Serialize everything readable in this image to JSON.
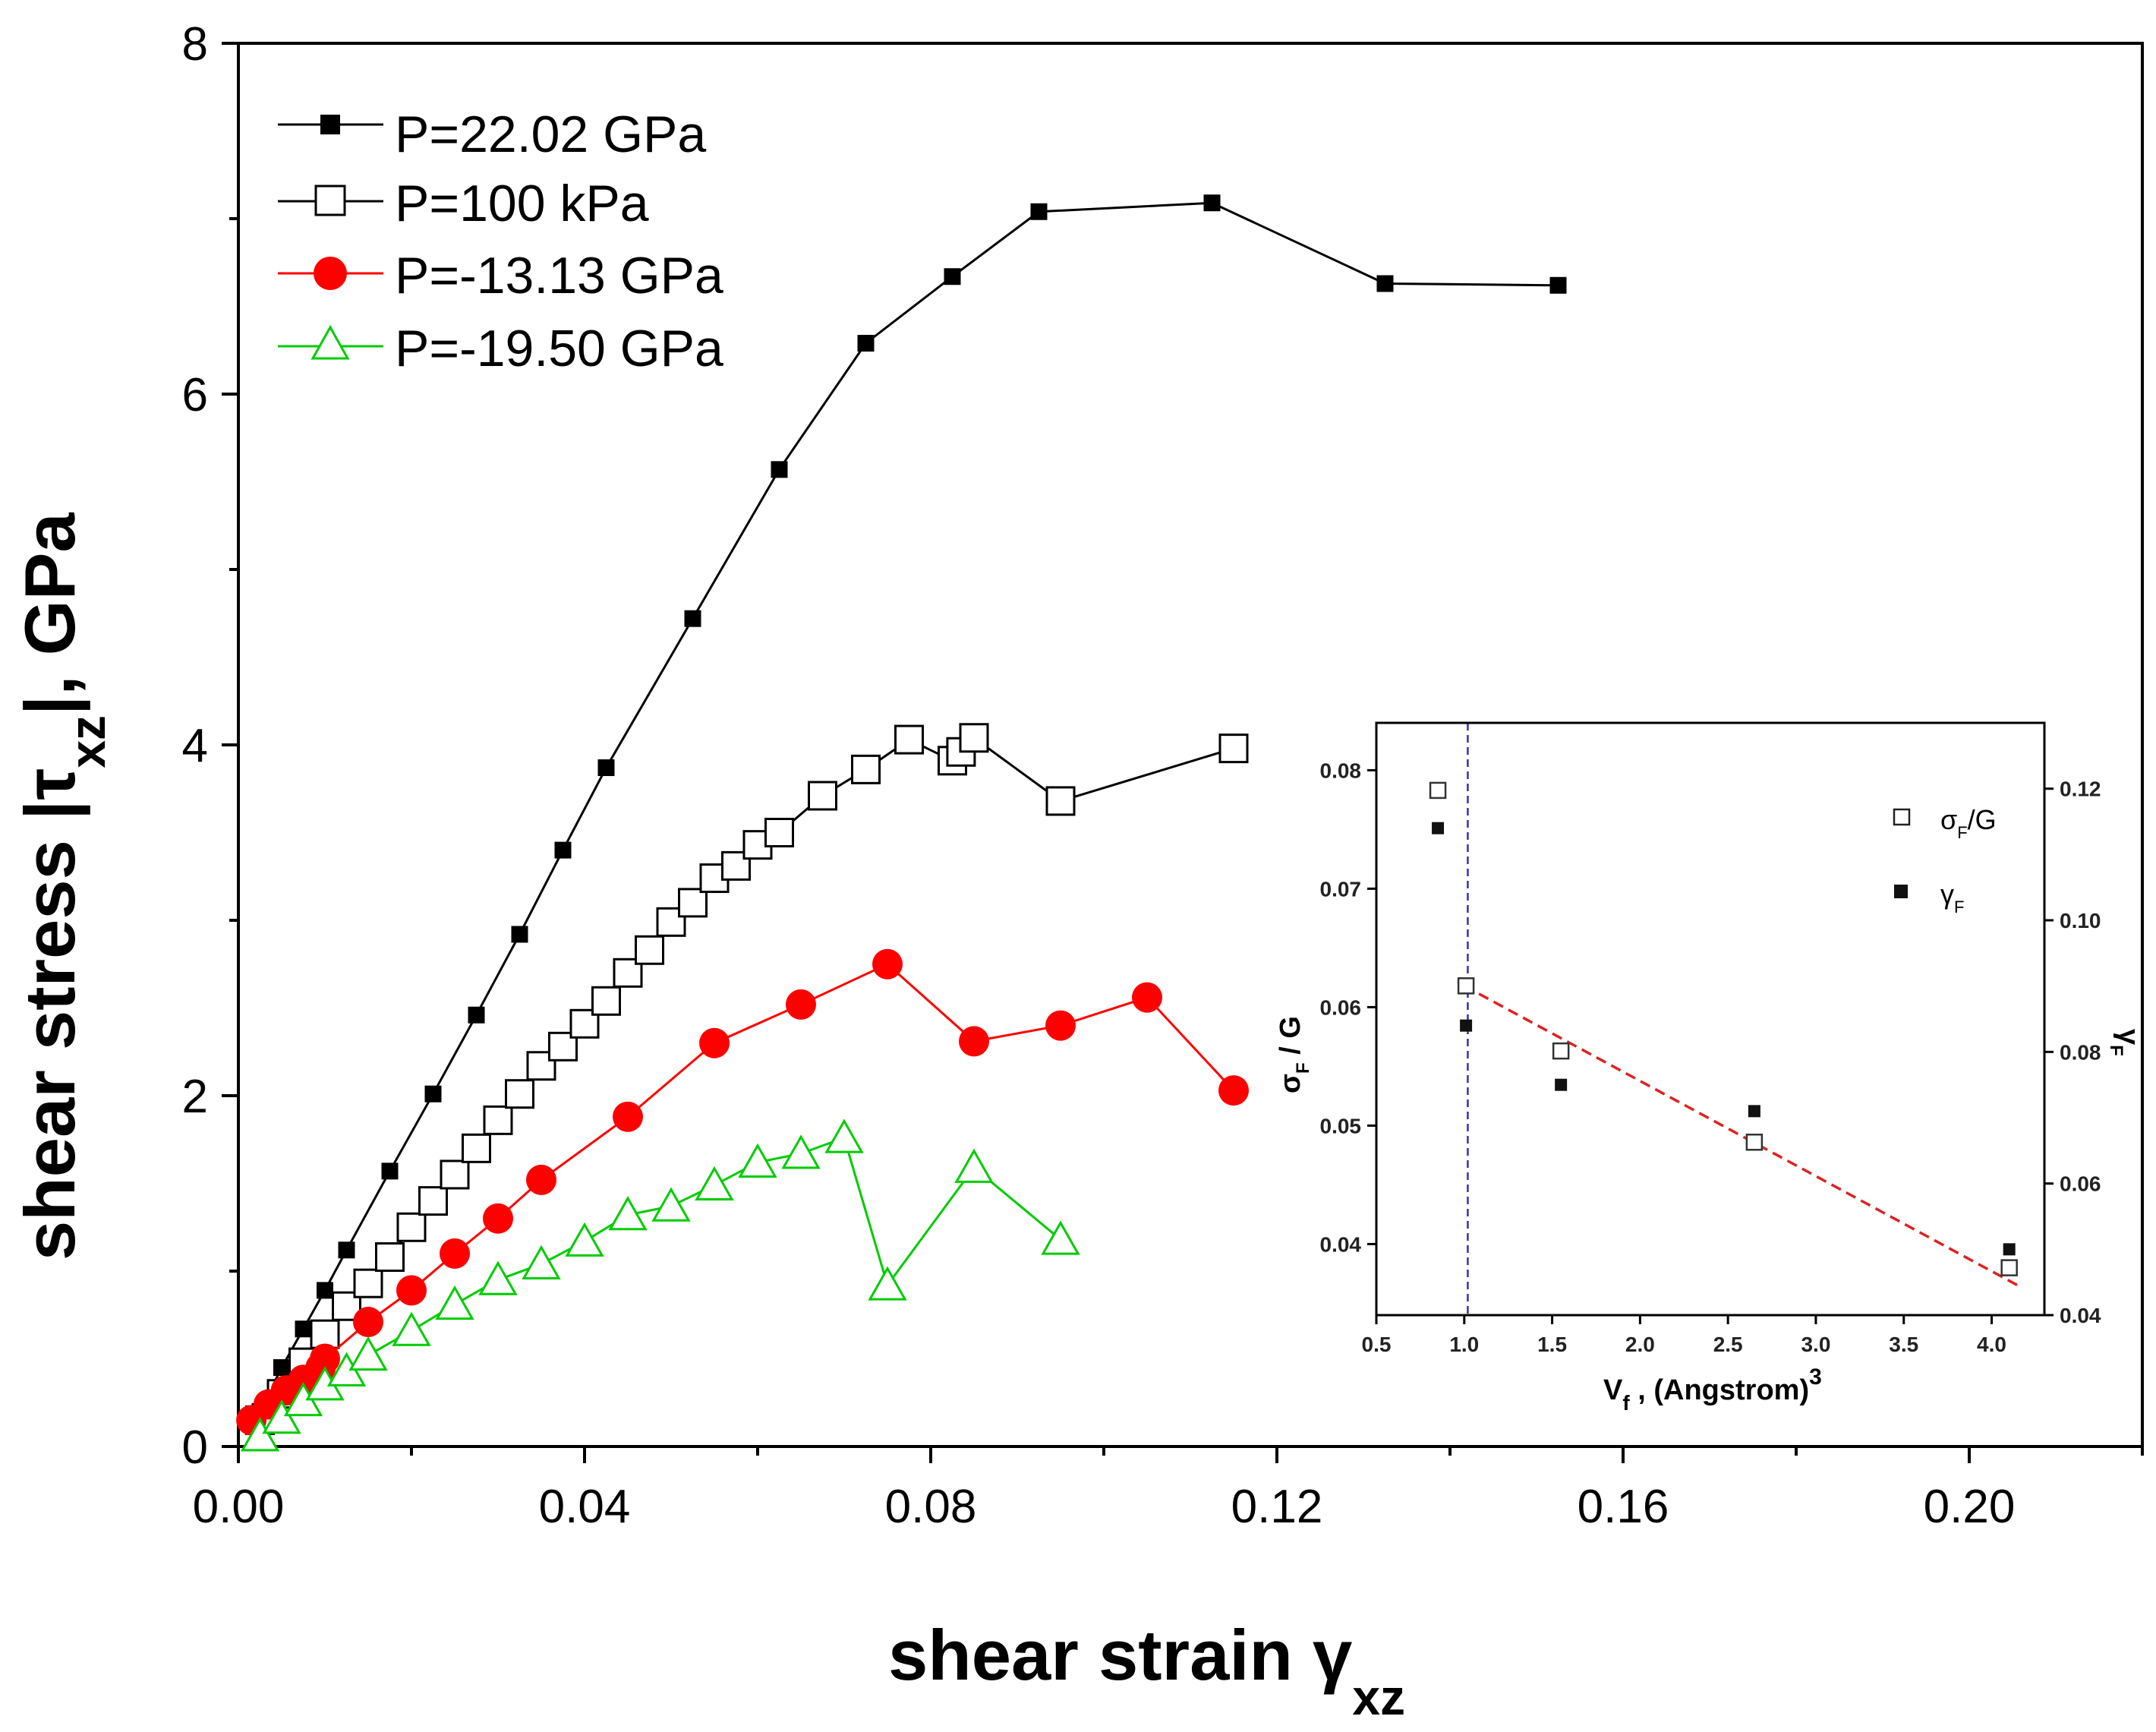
{
  "chart_data": [
    {
      "type": "line",
      "title": "",
      "xlabel": "shear strain γ",
      "xlabel_sub": "xz",
      "ylabel": "shear stress  |τ",
      "ylabel_sub": "xz",
      "ylabel_suffix": "|, GPa",
      "xlim": [
        0,
        0.22
      ],
      "ylim": [
        0,
        8
      ],
      "x_ticks": [
        "0.00",
        "0.04",
        "0.08",
        "0.12",
        "0.16",
        "0.20"
      ],
      "x_tick_values": [
        0,
        0.04,
        0.08,
        0.12,
        0.16,
        0.2
      ],
      "y_ticks": [
        "0",
        "2",
        "4",
        "6",
        "8"
      ],
      "y_tick_values": [
        0,
        2,
        4,
        6,
        8
      ],
      "grid": false,
      "legend_position": "top-left",
      "series": [
        {
          "name": "P=22.02 GPa",
          "marker": "filled-square",
          "color": "#000000",
          "x": [
            0.0025,
            0.005,
            0.0075,
            0.01,
            0.0125,
            0.0175,
            0.0225,
            0.0275,
            0.0325,
            0.0375,
            0.0425,
            0.0525,
            0.0625,
            0.0725,
            0.0825,
            0.0925,
            0.1125,
            0.1325,
            0.1525
          ],
          "y": [
            0.2,
            0.45,
            0.67,
            0.89,
            1.12,
            1.57,
            2.01,
            2.46,
            2.92,
            3.4,
            3.87,
            4.72,
            5.57,
            6.29,
            6.67,
            7.04,
            7.09,
            6.63,
            6.62
          ]
        },
        {
          "name": "P=100 kPa",
          "marker": "open-square",
          "color": "#000000",
          "x": [
            0.0025,
            0.005,
            0.0075,
            0.01,
            0.0125,
            0.015,
            0.0175,
            0.02,
            0.0225,
            0.025,
            0.0275,
            0.03,
            0.0325,
            0.035,
            0.0375,
            0.04,
            0.0425,
            0.045,
            0.0475,
            0.05,
            0.0525,
            0.055,
            0.0575,
            0.06,
            0.0625,
            0.0675,
            0.0725,
            0.0775,
            0.0825,
            0.0835,
            0.085,
            0.095,
            0.115
          ],
          "y": [
            0.15,
            0.3,
            0.48,
            0.64,
            0.8,
            0.93,
            1.08,
            1.25,
            1.4,
            1.55,
            1.7,
            1.86,
            2.01,
            2.17,
            2.28,
            2.41,
            2.54,
            2.7,
            2.83,
            2.99,
            3.1,
            3.24,
            3.31,
            3.43,
            3.5,
            3.71,
            3.86,
            4.03,
            3.91,
            3.96,
            4.04,
            3.68,
            3.98
          ]
        },
        {
          "name": "P=-13.13 GPa",
          "marker": "filled-circle",
          "color": "#ff0000",
          "x": [
            0.0015,
            0.0035,
            0.0055,
            0.0075,
            0.0095,
            0.01,
            0.015,
            0.02,
            0.025,
            0.03,
            0.035,
            0.045,
            0.055,
            0.065,
            0.075,
            0.085,
            0.095,
            0.105,
            0.115
          ],
          "y": [
            0.15,
            0.24,
            0.32,
            0.38,
            0.45,
            0.5,
            0.71,
            0.89,
            1.1,
            1.3,
            1.52,
            1.88,
            2.3,
            2.52,
            2.75,
            2.31,
            2.4,
            2.56,
            2.03
          ]
        },
        {
          "name": "P=-19.50 GPa",
          "marker": "open-triangle",
          "color": "#00cc00",
          "x": [
            0.0025,
            0.005,
            0.0075,
            0.01,
            0.0125,
            0.015,
            0.02,
            0.025,
            0.03,
            0.035,
            0.04,
            0.045,
            0.05,
            0.055,
            0.06,
            0.065,
            0.07,
            0.075,
            0.085,
            0.095
          ],
          "y": [
            0.06,
            0.16,
            0.26,
            0.35,
            0.43,
            0.52,
            0.66,
            0.81,
            0.95,
            1.04,
            1.17,
            1.32,
            1.37,
            1.49,
            1.62,
            1.67,
            1.76,
            0.92,
            1.59,
            1.18
          ]
        }
      ]
    },
    {
      "type": "scatter",
      "title": "",
      "xlabel": "V",
      "xlabel_sub": "f",
      "xlabel_suffix": " , (Angstrom)",
      "xlabel_sup": "3",
      "ylabel_left": "σ",
      "ylabel_left_sub": "F",
      "ylabel_left_suffix": " / G",
      "ylabel_right": "γ",
      "ylabel_right_sub": "F",
      "xlim": [
        0.5,
        4.3
      ],
      "ylim_left": [
        0.034,
        0.084
      ],
      "ylim_right": [
        0.04,
        0.13
      ],
      "x_ticks": [
        "0.5",
        "1.0",
        "1.5",
        "2.0",
        "2.5",
        "3.0",
        "3.5",
        "4.0"
      ],
      "x_tick_values": [
        0.5,
        1.0,
        1.5,
        2.0,
        2.5,
        3.0,
        3.5,
        4.0
      ],
      "y_ticks_left": [
        "0.04",
        "0.05",
        "0.06",
        "0.07",
        "0.08"
      ],
      "y_tick_values_left": [
        0.04,
        0.05,
        0.06,
        0.07,
        0.08
      ],
      "y_ticks_right": [
        "0.04",
        "0.06",
        "0.08",
        "0.10",
        "0.12"
      ],
      "y_tick_values_right": [
        0.04,
        0.06,
        0.08,
        0.1,
        0.12
      ],
      "legend_position": "top-right",
      "vertical_line_x": 1.02,
      "vertical_line_color": "#3333aa",
      "fit_line": {
        "x": [
          1.0,
          4.15
        ],
        "y_left": [
          0.0618,
          0.0365
        ],
        "color": "#dd2222"
      },
      "series": [
        {
          "name": "σ",
          "name_sub": "F",
          "name_suffix": "/G",
          "marker": "open-square",
          "axis": "left",
          "x": [
            0.85,
            1.01,
            1.55,
            2.65,
            4.1
          ],
          "y": [
            0.0783,
            0.0618,
            0.0563,
            0.0486,
            0.038
          ]
        },
        {
          "name": "γ",
          "name_sub": "F",
          "marker": "filled-square",
          "axis": "right",
          "x": [
            0.85,
            1.01,
            1.55,
            2.65,
            4.1
          ],
          "y": [
            0.114,
            0.084,
            0.075,
            0.071,
            0.05
          ]
        }
      ]
    }
  ]
}
